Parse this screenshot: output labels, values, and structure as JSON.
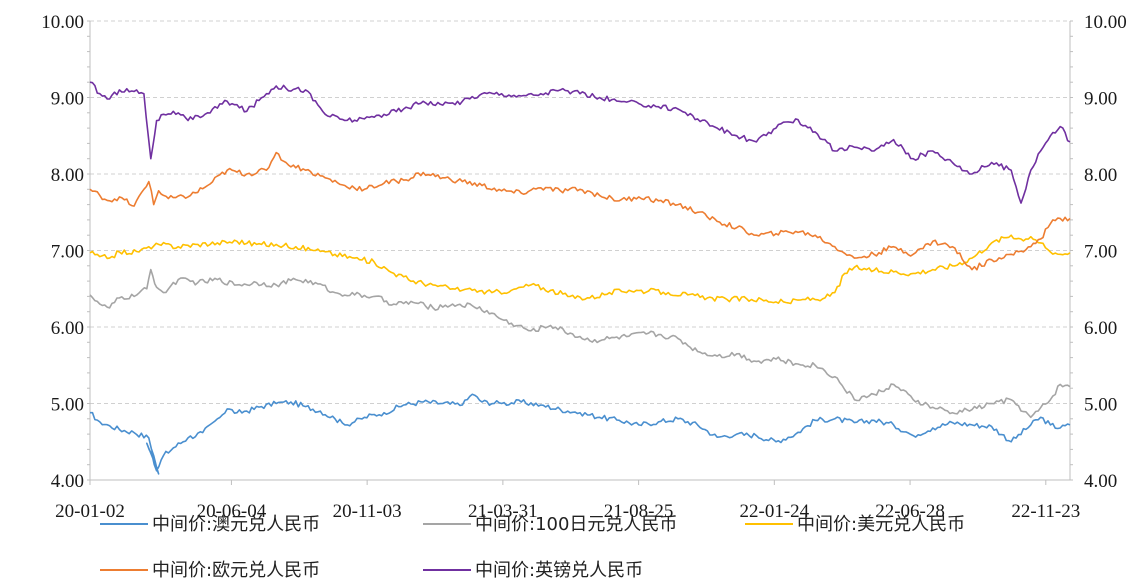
{
  "chart_data": {
    "type": "line",
    "title": "",
    "xlabel": "",
    "ylabel": "",
    "ylim": [
      4.0,
      10.0
    ],
    "y_ticks": [
      "4.00",
      "5.00",
      "6.00",
      "7.00",
      "8.00",
      "9.00",
      "10.00"
    ],
    "y_tick_values": [
      4,
      5,
      6,
      7,
      8,
      9,
      10
    ],
    "x_ticks": [
      "20-01-02",
      "20-06-04",
      "20-11-03",
      "21-03-31",
      "21-08-25",
      "22-01-24",
      "22-06-28",
      "22-11-23"
    ],
    "x_tick_positions": [
      0,
      0.1443,
      0.2828,
      0.4213,
      0.5598,
      0.6983,
      0.8368,
      0.9753
    ],
    "x_domain": [
      0,
      1
    ],
    "grid": {
      "horizontal": true,
      "vertical": false,
      "style": "dashed"
    },
    "dual_axis": true,
    "legend_position": "bottom",
    "series": [
      {
        "name": "中间价:澳元兑人民币",
        "color": "#4a8fcf",
        "x": [
          0,
          0.01,
          0.02,
          0.03,
          0.045,
          0.06,
          0.07,
          0.058,
          0.063,
          0.068,
          0.075,
          0.085,
          0.1,
          0.115,
          0.13,
          0.14,
          0.15,
          0.16,
          0.175,
          0.19,
          0.205,
          0.22,
          0.235,
          0.25,
          0.26,
          0.27,
          0.28,
          0.3,
          0.32,
          0.34,
          0.36,
          0.38,
          0.39,
          0.4,
          0.42,
          0.44,
          0.46,
          0.48,
          0.5,
          0.52,
          0.54,
          0.56,
          0.58,
          0.6,
          0.62,
          0.64,
          0.66,
          0.68,
          0.7,
          0.72,
          0.74,
          0.76,
          0.78,
          0.8,
          0.82,
          0.84,
          0.86,
          0.88,
          0.9,
          0.92,
          0.94,
          0.96,
          0.97,
          0.98,
          0.99,
          1.0
        ],
        "values": [
          4.88,
          4.76,
          4.71,
          4.66,
          4.62,
          4.55,
          4.08,
          4.48,
          4.35,
          4.12,
          4.32,
          4.42,
          4.55,
          4.62,
          4.8,
          4.93,
          4.88,
          4.9,
          4.96,
          5.0,
          5.02,
          4.96,
          4.9,
          4.8,
          4.72,
          4.76,
          4.82,
          4.88,
          4.98,
          5.02,
          5.0,
          4.98,
          5.12,
          5.02,
          5.0,
          5.02,
          4.98,
          4.92,
          4.88,
          4.82,
          4.78,
          4.72,
          4.76,
          4.8,
          4.72,
          4.56,
          4.6,
          4.58,
          4.5,
          4.6,
          4.78,
          4.8,
          4.75,
          4.78,
          4.72,
          4.58,
          4.68,
          4.75,
          4.72,
          4.7,
          4.5,
          4.72,
          4.82,
          4.72,
          4.68,
          4.72
        ]
      },
      {
        "name": "中间价:100日元兑人民币",
        "color": "#a5a5a5",
        "x": [
          0,
          0.01,
          0.02,
          0.03,
          0.045,
          0.058,
          0.062,
          0.068,
          0.075,
          0.09,
          0.11,
          0.13,
          0.15,
          0.17,
          0.19,
          0.21,
          0.23,
          0.25,
          0.27,
          0.29,
          0.31,
          0.33,
          0.35,
          0.37,
          0.39,
          0.41,
          0.42,
          0.43,
          0.45,
          0.47,
          0.49,
          0.51,
          0.53,
          0.55,
          0.57,
          0.58,
          0.6,
          0.62,
          0.64,
          0.66,
          0.68,
          0.7,
          0.72,
          0.74,
          0.76,
          0.78,
          0.8,
          0.82,
          0.84,
          0.86,
          0.88,
          0.9,
          0.92,
          0.94,
          0.96,
          0.98,
          0.99,
          1.0
        ],
        "values": [
          6.42,
          6.3,
          6.25,
          6.38,
          6.4,
          6.5,
          6.75,
          6.52,
          6.45,
          6.62,
          6.58,
          6.62,
          6.55,
          6.58,
          6.55,
          6.62,
          6.58,
          6.45,
          6.42,
          6.4,
          6.3,
          6.32,
          6.25,
          6.3,
          6.28,
          6.18,
          6.1,
          6.05,
          5.95,
          6.02,
          5.92,
          5.82,
          5.85,
          5.88,
          5.92,
          5.9,
          5.85,
          5.68,
          5.62,
          5.65,
          5.55,
          5.58,
          5.52,
          5.5,
          5.35,
          5.05,
          5.12,
          5.25,
          5.05,
          4.95,
          4.88,
          4.92,
          5.0,
          5.05,
          4.82,
          5.05,
          5.25,
          5.22
        ]
      },
      {
        "name": "中间价:美元兑人民币",
        "color": "#ffc000",
        "x": [
          0,
          0.01,
          0.02,
          0.03,
          0.05,
          0.06,
          0.07,
          0.09,
          0.11,
          0.13,
          0.15,
          0.17,
          0.19,
          0.21,
          0.23,
          0.25,
          0.27,
          0.29,
          0.31,
          0.33,
          0.35,
          0.37,
          0.39,
          0.41,
          0.43,
          0.45,
          0.47,
          0.49,
          0.51,
          0.53,
          0.55,
          0.57,
          0.59,
          0.61,
          0.63,
          0.65,
          0.67,
          0.69,
          0.71,
          0.73,
          0.75,
          0.76,
          0.77,
          0.78,
          0.8,
          0.82,
          0.84,
          0.86,
          0.88,
          0.9,
          0.92,
          0.94,
          0.95,
          0.96,
          0.97,
          0.98,
          0.99,
          1.0
        ],
        "values": [
          6.97,
          6.92,
          6.9,
          6.98,
          6.98,
          7.05,
          7.08,
          7.05,
          7.08,
          7.1,
          7.12,
          7.08,
          7.08,
          7.05,
          7.0,
          6.95,
          6.9,
          6.85,
          6.7,
          6.6,
          6.55,
          6.5,
          6.48,
          6.45,
          6.48,
          6.55,
          6.48,
          6.4,
          6.38,
          6.45,
          6.48,
          6.47,
          6.45,
          6.42,
          6.38,
          6.36,
          6.37,
          6.35,
          6.32,
          6.36,
          6.38,
          6.45,
          6.7,
          6.78,
          6.74,
          6.72,
          6.7,
          6.75,
          6.8,
          6.9,
          7.1,
          7.2,
          7.15,
          7.18,
          7.1,
          6.98,
          6.95,
          6.97
        ]
      },
      {
        "name": "中间价:欧元兑人民币",
        "color": "#ed7d31",
        "x": [
          0,
          0.01,
          0.02,
          0.03,
          0.045,
          0.055,
          0.06,
          0.065,
          0.07,
          0.08,
          0.1,
          0.12,
          0.14,
          0.16,
          0.18,
          0.19,
          0.2,
          0.22,
          0.24,
          0.26,
          0.28,
          0.3,
          0.32,
          0.34,
          0.36,
          0.38,
          0.4,
          0.42,
          0.44,
          0.46,
          0.48,
          0.5,
          0.52,
          0.54,
          0.56,
          0.58,
          0.6,
          0.62,
          0.64,
          0.66,
          0.68,
          0.7,
          0.72,
          0.74,
          0.76,
          0.78,
          0.8,
          0.82,
          0.84,
          0.86,
          0.88,
          0.9,
          0.92,
          0.94,
          0.96,
          0.97,
          0.98,
          0.99,
          1.0
        ],
        "values": [
          7.8,
          7.72,
          7.65,
          7.7,
          7.58,
          7.8,
          7.9,
          7.6,
          7.78,
          7.68,
          7.7,
          7.85,
          8.05,
          8.0,
          8.05,
          8.28,
          8.15,
          8.05,
          7.95,
          7.85,
          7.8,
          7.88,
          7.92,
          8.02,
          7.95,
          7.9,
          7.85,
          7.78,
          7.75,
          7.82,
          7.78,
          7.8,
          7.72,
          7.65,
          7.7,
          7.65,
          7.6,
          7.5,
          7.38,
          7.3,
          7.2,
          7.22,
          7.25,
          7.2,
          7.05,
          6.9,
          6.95,
          7.05,
          6.95,
          7.12,
          7.05,
          6.75,
          6.88,
          6.95,
          7.05,
          7.15,
          7.35,
          7.42,
          7.42
        ]
      },
      {
        "name": "中间价:英镑兑人民币",
        "color": "#7030a0",
        "x": [
          0,
          0.01,
          0.02,
          0.03,
          0.045,
          0.055,
          0.062,
          0.068,
          0.075,
          0.085,
          0.1,
          0.12,
          0.14,
          0.16,
          0.18,
          0.19,
          0.2,
          0.22,
          0.24,
          0.26,
          0.28,
          0.3,
          0.32,
          0.34,
          0.36,
          0.38,
          0.4,
          0.42,
          0.44,
          0.46,
          0.48,
          0.5,
          0.52,
          0.54,
          0.56,
          0.58,
          0.6,
          0.62,
          0.64,
          0.66,
          0.68,
          0.7,
          0.72,
          0.74,
          0.76,
          0.78,
          0.8,
          0.82,
          0.84,
          0.86,
          0.88,
          0.9,
          0.92,
          0.94,
          0.95,
          0.96,
          0.97,
          0.98,
          0.99,
          1.0
        ],
        "values": [
          9.2,
          9.05,
          8.98,
          9.1,
          9.08,
          9.05,
          8.2,
          8.7,
          8.78,
          8.82,
          8.7,
          8.8,
          8.95,
          8.82,
          9.05,
          9.15,
          9.12,
          9.1,
          8.78,
          8.7,
          8.72,
          8.78,
          8.85,
          8.95,
          8.9,
          8.95,
          9.05,
          9.05,
          9.02,
          9.05,
          9.1,
          9.05,
          9.0,
          8.95,
          8.92,
          8.88,
          8.85,
          8.72,
          8.6,
          8.5,
          8.42,
          8.6,
          8.72,
          8.55,
          8.3,
          8.35,
          8.3,
          8.45,
          8.2,
          8.3,
          8.15,
          8.0,
          8.15,
          8.05,
          7.62,
          8.05,
          8.3,
          8.5,
          8.62,
          8.42
        ]
      }
    ]
  }
}
